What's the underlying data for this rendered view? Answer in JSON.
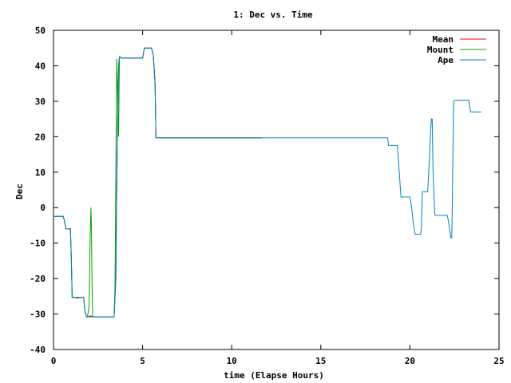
{
  "chart_data": {
    "type": "line",
    "title": "1: Dec vs. Time",
    "xlabel": "time (Elapse Hours)",
    "ylabel": "Dec",
    "xlim": [
      0,
      25
    ],
    "ylim": [
      -40,
      50
    ],
    "xticks": [
      0,
      5,
      10,
      15,
      20,
      25
    ],
    "yticks": [
      -40,
      -30,
      -20,
      -10,
      0,
      10,
      20,
      30,
      40,
      50
    ],
    "grid": false,
    "legend_position": "top-right",
    "series": [
      {
        "name": "Mean",
        "color": "#ff0000",
        "x": [
          0.0,
          0.55,
          0.6,
          0.7,
          0.95,
          1.0,
          1.05,
          1.1,
          1.4,
          1.45,
          1.7,
          1.75,
          1.85,
          1.9,
          2.05,
          2.2,
          2.3,
          3.4,
          3.5,
          3.55,
          3.6,
          3.65,
          3.7,
          3.75,
          3.8,
          3.9,
          5.0,
          5.1,
          5.2,
          5.5,
          5.6,
          5.7,
          5.75,
          11.7
        ],
        "y": [
          -2.5,
          -2.5,
          -3.5,
          -6.0,
          -6.0,
          -14.0,
          -25.3,
          -25.3,
          -25.5,
          -25.3,
          -25.3,
          -29.0,
          -30.8,
          -30.8,
          -30.5,
          -30.7,
          -30.8,
          -30.8,
          -20.0,
          5.0,
          25.0,
          40.0,
          42.5,
          42.5,
          42.2,
          42.2,
          42.2,
          45.0,
          45.0,
          45.0,
          43.0,
          35.0,
          19.7,
          19.7
        ]
      },
      {
        "name": "Mount",
        "color": "#00a000",
        "x": [
          0.0,
          0.55,
          0.6,
          0.7,
          0.95,
          1.0,
          1.05,
          1.1,
          1.7,
          1.75,
          1.85,
          1.9,
          2.0,
          2.05,
          2.1,
          2.13,
          2.16,
          2.2,
          2.3,
          3.4,
          3.45,
          3.5,
          3.55,
          3.6,
          3.65,
          3.7,
          3.75,
          3.8,
          3.9,
          5.0,
          5.1,
          5.2,
          5.5,
          5.6,
          5.7,
          5.75,
          11.7
        ],
        "y": [
          -2.5,
          -2.5,
          -3.5,
          -6.0,
          -6.0,
          -14.0,
          -25.3,
          -25.3,
          -25.3,
          -29.0,
          -30.8,
          -30.8,
          -28.0,
          -10.0,
          0.0,
          -5.0,
          -20.0,
          -30.8,
          -30.8,
          -30.8,
          -22.0,
          10.0,
          42.0,
          30.0,
          20.0,
          42.5,
          42.5,
          42.2,
          42.2,
          42.2,
          45.0,
          45.0,
          45.0,
          43.0,
          35.0,
          19.7,
          19.7
        ]
      },
      {
        "name": "Ape",
        "color": "#0080c0",
        "x": [
          0.0,
          0.55,
          0.6,
          0.7,
          0.95,
          1.0,
          1.05,
          1.1,
          1.7,
          1.75,
          1.85,
          1.9,
          2.3,
          3.4,
          3.5,
          3.55,
          3.6,
          3.65,
          3.7,
          3.75,
          3.8,
          3.9,
          5.0,
          5.1,
          5.2,
          5.5,
          5.6,
          5.7,
          5.75,
          18.75,
          18.8,
          19.3,
          19.4,
          19.5,
          19.6,
          20.0,
          20.1,
          20.2,
          20.3,
          20.6,
          20.65,
          20.7,
          21.0,
          21.1,
          21.2,
          21.25,
          21.3,
          21.4,
          21.45,
          21.5,
          22.1,
          22.2,
          22.3,
          22.35,
          22.4,
          22.45,
          22.5,
          22.55,
          23.3,
          23.4,
          23.45,
          24.0
        ],
        "y": [
          -2.5,
          -2.5,
          -3.5,
          -6.0,
          -6.0,
          -14.0,
          -25.3,
          -25.3,
          -25.3,
          -29.0,
          -30.8,
          -30.8,
          -30.8,
          -30.8,
          -20.0,
          5.0,
          25.0,
          40.0,
          42.5,
          42.5,
          42.2,
          42.2,
          42.2,
          45.0,
          45.0,
          45.0,
          43.0,
          35.0,
          19.7,
          19.7,
          17.5,
          17.5,
          10.0,
          3.0,
          3.0,
          3.0,
          0.0,
          -5.0,
          -7.5,
          -7.5,
          -5.0,
          4.5,
          4.5,
          15.0,
          25.0,
          25.0,
          10.0,
          -2.0,
          -2.2,
          -2.2,
          -2.2,
          -5.0,
          -8.5,
          -8.5,
          10.0,
          30.0,
          30.3,
          30.3,
          30.3,
          27.0,
          27.0,
          27.0
        ]
      }
    ]
  }
}
